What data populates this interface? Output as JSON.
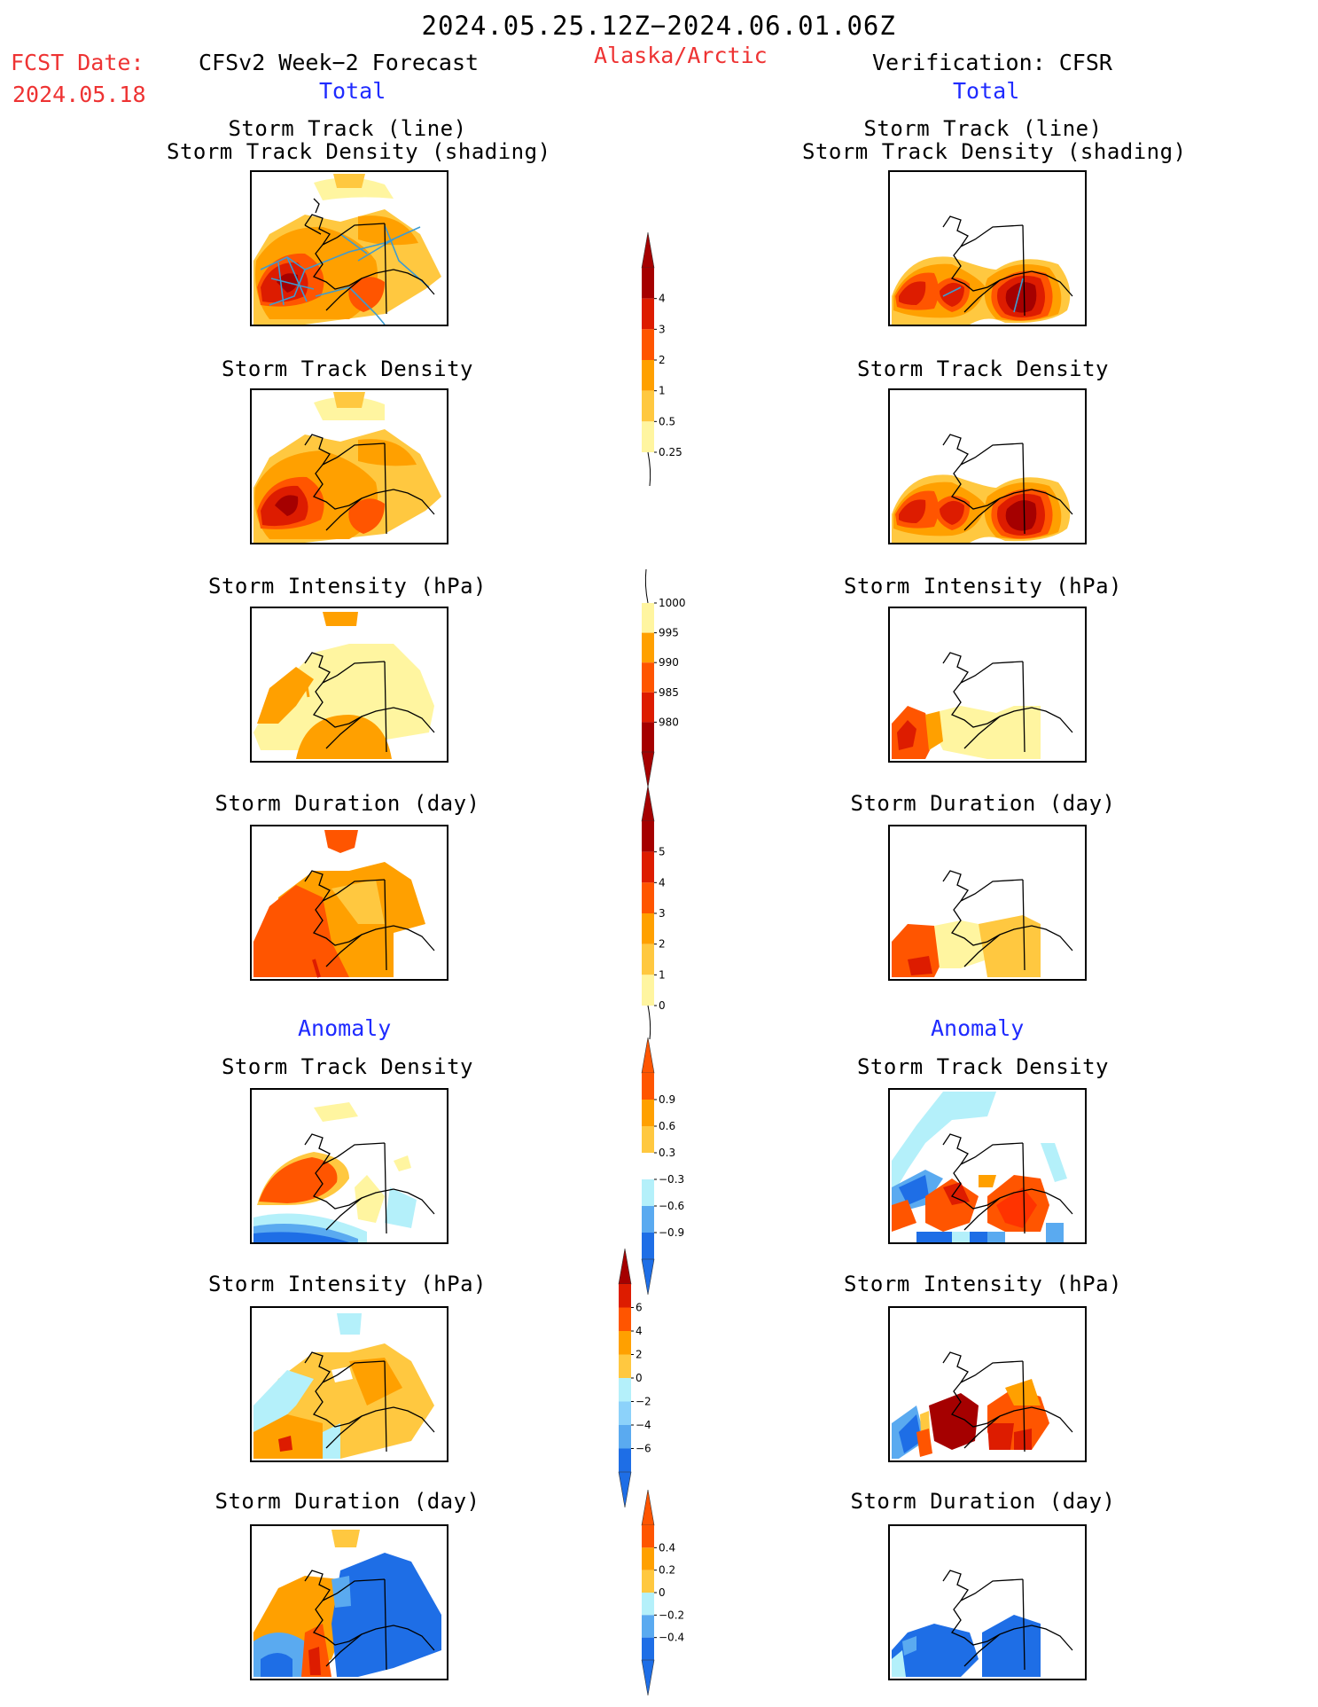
{
  "header": {
    "period": "2024.05.25.12Z−2024.06.01.06Z",
    "fcst_label": "FCST Date:",
    "fcst_date": "2024.05.18",
    "left_title": "CFSv2 Week−2 Forecast",
    "region": "Alaska/Arctic",
    "right_title": "Verification: CFSR",
    "total_label": "Total",
    "anomaly_label": "Anomaly"
  },
  "panel_titles": {
    "track_line_1": "Storm Track (line)",
    "track_line_2": "Storm Track Density (shading)",
    "density": "Storm Track Density",
    "intensity": "Storm Intensity (hPa)",
    "duration": "Storm Duration (day)"
  },
  "colors": {
    "dark_red": "#a50000",
    "red": "#dd1c00",
    "orange_red": "#ff5500",
    "orange": "#ffa000",
    "light_orange": "#ffc840",
    "pale_yellow": "#fff5a0",
    "light_blue": "#b4f0fa",
    "mid_blue": "#5aaaf0",
    "blue": "#1e6ee6",
    "track_line": "#3c9bd2"
  },
  "chart_data": [
    {
      "type": "heatmap",
      "title": "Storm Track (line) Storm Track Density (shading)",
      "side": "forecast",
      "section": "Total"
    },
    {
      "type": "heatmap",
      "title": "Storm Track Density",
      "side": "forecast",
      "section": "Total"
    },
    {
      "type": "heatmap",
      "title": "Storm Intensity (hPa)",
      "side": "forecast",
      "section": "Total"
    },
    {
      "type": "heatmap",
      "title": "Storm Duration (day)",
      "side": "forecast",
      "section": "Total"
    },
    {
      "type": "heatmap",
      "title": "Storm Track Density",
      "side": "forecast",
      "section": "Anomaly"
    },
    {
      "type": "heatmap",
      "title": "Storm Intensity (hPa)",
      "side": "forecast",
      "section": "Anomaly"
    },
    {
      "type": "heatmap",
      "title": "Storm Duration (day)",
      "side": "forecast",
      "section": "Anomaly"
    },
    {
      "type": "heatmap",
      "title": "Storm Track (line) Storm Track Density (shading)",
      "side": "verification",
      "section": "Total"
    },
    {
      "type": "heatmap",
      "title": "Storm Track Density",
      "side": "verification",
      "section": "Total"
    },
    {
      "type": "heatmap",
      "title": "Storm Intensity (hPa)",
      "side": "verification",
      "section": "Total"
    },
    {
      "type": "heatmap",
      "title": "Storm Duration (day)",
      "side": "verification",
      "section": "Total"
    },
    {
      "type": "heatmap",
      "title": "Storm Track Density",
      "side": "verification",
      "section": "Anomaly"
    },
    {
      "type": "heatmap",
      "title": "Storm Intensity (hPa)",
      "side": "verification",
      "section": "Anomaly"
    },
    {
      "type": "heatmap",
      "title": "Storm Duration (day)",
      "side": "verification",
      "section": "Anomaly"
    }
  ],
  "colorbars": [
    {
      "name": "density-total",
      "labels": [
        "4",
        "3",
        "2",
        "1",
        "0.5",
        "0.25"
      ],
      "colors": [
        "#a50000",
        "#dd1c00",
        "#ff5500",
        "#ffa000",
        "#ffc840",
        "#fff5a0"
      ],
      "top_arrow": "#a50000",
      "bottom_arrow": "none"
    },
    {
      "name": "intensity-total",
      "labels": [
        "1000",
        "995",
        "990",
        "985",
        "980"
      ],
      "colors": [
        "#fff5a0",
        "#ffa000",
        "#ff5500",
        "#dd1c00",
        "#a50000"
      ],
      "top_arrow": "none",
      "bottom_arrow": "#a50000"
    },
    {
      "name": "duration-total",
      "labels": [
        "5",
        "4",
        "3",
        "2",
        "1",
        "0"
      ],
      "colors": [
        "#a50000",
        "#dd1c00",
        "#ff5500",
        "#ffa000",
        "#ffc840",
        "#fff5a0"
      ],
      "top_arrow": "#a50000",
      "bottom_arrow": "none"
    },
    {
      "name": "density-anomaly",
      "labels": [
        "0.9",
        "0.6",
        "0.3",
        "−0.3",
        "−0.6",
        "−0.9"
      ],
      "colors": [
        "#ff5500",
        "#ffa000",
        "#ffc840",
        "#ffffff",
        "#b4f0fa",
        "#5aaaf0",
        "#1e6ee6"
      ],
      "top_arrow": "#ff5500",
      "bottom_arrow": "#1e6ee6"
    },
    {
      "name": "intensity-anomaly",
      "labels": [
        "6",
        "4",
        "2",
        "0",
        "−2",
        "−4",
        "−6"
      ],
      "colors": [
        "#dd1c00",
        "#ff5500",
        "#ffa000",
        "#ffc840",
        "#b4f0fa",
        "#8cd2fa",
        "#5aaaf0",
        "#1e6ee6"
      ],
      "top_arrow": "#a50000",
      "bottom_arrow": "#1e6ee6"
    },
    {
      "name": "duration-anomaly",
      "labels": [
        "0.4",
        "0.2",
        "0",
        "−0.2",
        "−0.4"
      ],
      "colors": [
        "#ff5500",
        "#ffa000",
        "#ffc840",
        "#b4f0fa",
        "#5aaaf0",
        "#1e6ee6"
      ],
      "top_arrow": "#ff5500",
      "bottom_arrow": "#1e6ee6"
    }
  ]
}
